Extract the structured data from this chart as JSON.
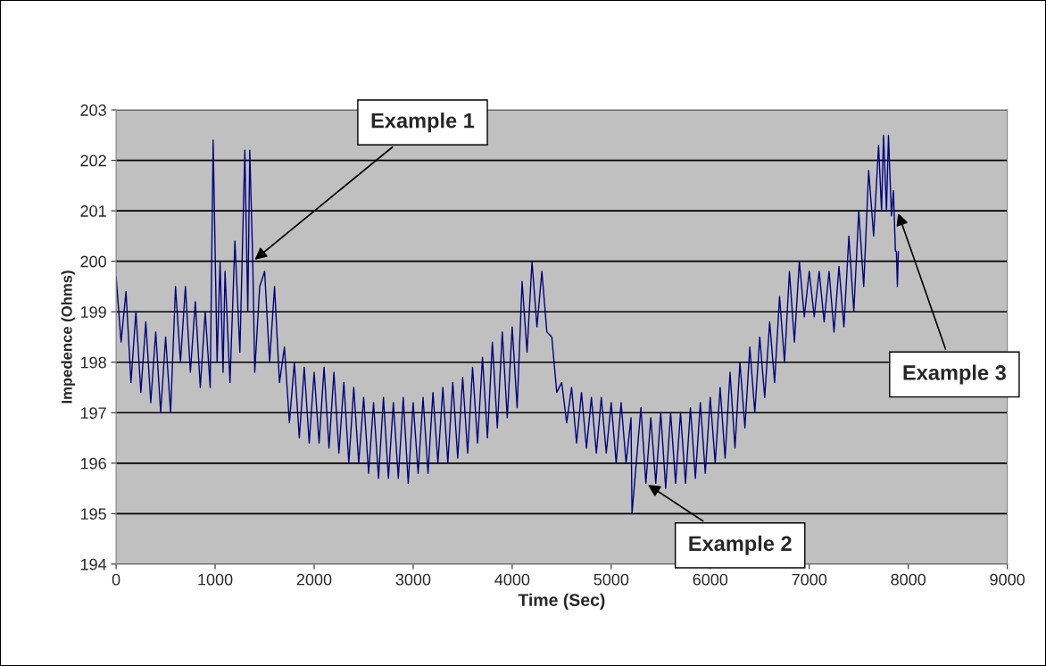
{
  "chart_data": {
    "type": "line",
    "xlabel": "Time (Sec)",
    "ylabel": "Impedence (Ohms)",
    "xlim": [
      0,
      9000
    ],
    "xticks": [
      0,
      1000,
      2000,
      3000,
      4000,
      5000,
      6000,
      7000,
      8000,
      9000
    ],
    "ylim": [
      194,
      203
    ],
    "yticks": [
      194,
      195,
      196,
      197,
      198,
      199,
      200,
      201,
      202,
      203
    ],
    "grid": "y",
    "marker": "none",
    "line_style": "solid",
    "x": [
      0,
      50,
      100,
      150,
      200,
      250,
      300,
      350,
      400,
      450,
      500,
      550,
      600,
      650,
      700,
      750,
      800,
      850,
      900,
      950,
      980,
      1020,
      1050,
      1080,
      1100,
      1150,
      1200,
      1250,
      1300,
      1330,
      1350,
      1380,
      1400,
      1450,
      1500,
      1550,
      1600,
      1650,
      1700,
      1750,
      1800,
      1850,
      1900,
      1950,
      2000,
      2050,
      2100,
      2150,
      2200,
      2250,
      2300,
      2350,
      2400,
      2450,
      2500,
      2550,
      2600,
      2650,
      2700,
      2750,
      2800,
      2850,
      2900,
      2950,
      3000,
      3050,
      3100,
      3150,
      3200,
      3250,
      3300,
      3350,
      3400,
      3450,
      3500,
      3550,
      3600,
      3650,
      3700,
      3750,
      3800,
      3850,
      3900,
      3950,
      4000,
      4050,
      4100,
      4150,
      4200,
      4250,
      4300,
      4350,
      4400,
      4450,
      4500,
      4550,
      4600,
      4650,
      4700,
      4750,
      4800,
      4850,
      4900,
      4950,
      5000,
      5050,
      5100,
      5150,
      5200,
      5210,
      5300,
      5350,
      5400,
      5450,
      5500,
      5550,
      5600,
      5650,
      5700,
      5750,
      5800,
      5850,
      5900,
      5950,
      6000,
      6050,
      6100,
      6150,
      6200,
      6250,
      6300,
      6350,
      6400,
      6450,
      6500,
      6550,
      6600,
      6650,
      6700,
      6750,
      6800,
      6850,
      6900,
      6950,
      7000,
      7050,
      7100,
      7150,
      7200,
      7250,
      7300,
      7350,
      7400,
      7450,
      7500,
      7550,
      7600,
      7650,
      7700,
      7730,
      7750,
      7780,
      7800,
      7830,
      7850,
      7870,
      7880,
      7890,
      7900
    ],
    "series": [
      {
        "color": "#000080",
        "values": [
          199.7,
          198.4,
          199.4,
          197.6,
          199.0,
          197.4,
          198.8,
          197.2,
          198.6,
          197.0,
          198.5,
          197.0,
          199.5,
          198.0,
          199.5,
          197.8,
          199.2,
          197.5,
          199.0,
          197.5,
          202.4,
          198.0,
          200.0,
          197.8,
          199.8,
          197.6,
          200.4,
          198.2,
          202.2,
          199.0,
          202.2,
          200.0,
          197.8,
          199.5,
          199.8,
          198.0,
          199.5,
          197.6,
          198.3,
          196.8,
          198.0,
          196.5,
          197.9,
          196.4,
          197.8,
          196.4,
          197.9,
          196.3,
          197.8,
          196.2,
          197.6,
          196.0,
          197.5,
          196.0,
          197.3,
          195.8,
          197.2,
          195.7,
          197.3,
          195.7,
          197.2,
          195.7,
          197.3,
          195.6,
          197.2,
          195.8,
          197.3,
          195.8,
          197.4,
          196.0,
          197.5,
          196.0,
          197.6,
          196.1,
          197.7,
          196.2,
          197.9,
          196.4,
          198.1,
          196.5,
          198.4,
          196.7,
          198.6,
          196.9,
          198.7,
          197.1,
          199.6,
          198.2,
          200.0,
          198.7,
          199.8,
          198.6,
          198.5,
          197.4,
          197.6,
          196.8,
          197.5,
          196.4,
          197.4,
          196.3,
          197.3,
          196.2,
          197.3,
          196.2,
          197.2,
          196.0,
          197.2,
          196.0,
          196.9,
          195.0,
          197.1,
          195.6,
          196.9,
          195.6,
          197.0,
          195.5,
          197.0,
          195.6,
          197.0,
          195.6,
          197.1,
          195.7,
          197.2,
          195.8,
          197.3,
          196.0,
          197.5,
          196.1,
          197.8,
          196.3,
          198.0,
          196.7,
          198.3,
          197.0,
          198.5,
          197.3,
          198.8,
          197.6,
          199.3,
          198.0,
          199.8,
          198.4,
          200.0,
          198.9,
          199.8,
          198.9,
          199.8,
          198.8,
          199.8,
          198.6,
          199.9,
          198.7,
          200.5,
          199.0,
          201.0,
          199.5,
          201.8,
          200.5,
          202.3,
          201.0,
          202.5,
          201.0,
          202.5,
          200.9,
          201.4,
          200.2,
          200.2,
          199.5,
          200.2
        ]
      }
    ],
    "annotations": [
      {
        "text": "Example 1",
        "x": 1380,
        "y": 200.0
      },
      {
        "text": "Example 2",
        "x": 5350,
        "y": 195.6
      },
      {
        "text": "Example 3",
        "x": 7890,
        "y": 201.0
      }
    ]
  }
}
